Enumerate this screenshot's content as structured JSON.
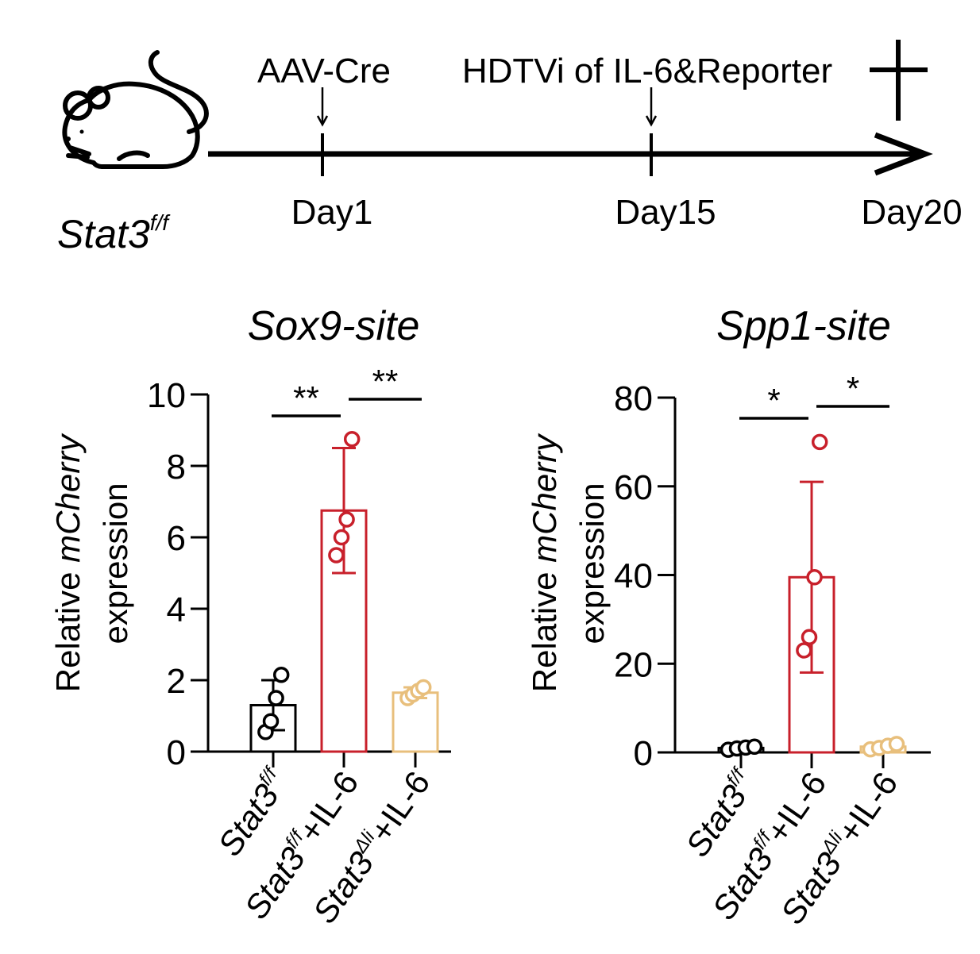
{
  "timeline": {
    "mouse_label": "Stat3",
    "mouse_label_sup": "f/f",
    "events": [
      {
        "label": "AAV-Cre",
        "day": "Day1"
      },
      {
        "label": "HDTVi of IL-6&Reporter",
        "day": "Day15"
      },
      {
        "label": "",
        "day": "Day20"
      }
    ],
    "end_marker": "sacrifice-cross",
    "icon": "mouse-icon"
  },
  "colors": {
    "control": "#000000",
    "il6": "#c8202b",
    "knockout": "#e8bf7c"
  },
  "group_labels": [
    {
      "base": "Stat3",
      "sup": "f/f",
      "suffix": ""
    },
    {
      "base": "Stat3",
      "sup": "f/f",
      "suffix": "+IL-6"
    },
    {
      "base": "Stat3",
      "sup": "Δli",
      "suffix": "+IL-6"
    }
  ],
  "ylabel": {
    "plain": "Relative ",
    "italic": "mCherry",
    "line2": "expression"
  },
  "chart_data": [
    {
      "type": "bar",
      "title": "Sox9-site",
      "ylim": [
        0,
        10
      ],
      "yticks": [
        "0",
        "2",
        "4",
        "6",
        "8",
        "10"
      ],
      "series": [
        {
          "mean": 1.3,
          "sd": 0.7,
          "points": [
            0.55,
            0.85,
            1.5,
            2.15
          ]
        },
        {
          "mean": 6.75,
          "sd": 1.75,
          "points": [
            5.5,
            6.0,
            6.5,
            8.75
          ]
        },
        {
          "mean": 1.65,
          "sd": 0.15,
          "points": [
            1.5,
            1.6,
            1.7,
            1.8
          ]
        }
      ],
      "significance": [
        {
          "from": 0,
          "to": 1,
          "label": "**"
        },
        {
          "from": 1,
          "to": 2,
          "label": "**"
        }
      ]
    },
    {
      "type": "bar",
      "title": "Spp1-site",
      "ylim": [
        0,
        80
      ],
      "yticks": [
        "0",
        "20",
        "40",
        "60",
        "80"
      ],
      "series": [
        {
          "mean": 1.0,
          "sd": 0.3,
          "points": [
            0.6,
            0.9,
            1.1,
            1.3
          ]
        },
        {
          "mean": 39.5,
          "sd": 21.5,
          "points": [
            23.0,
            26.0,
            39.5,
            70.0
          ]
        },
        {
          "mean": 1.3,
          "sd": 0.4,
          "points": [
            0.7,
            1.0,
            1.5,
            1.9
          ]
        }
      ],
      "significance": [
        {
          "from": 0,
          "to": 1,
          "label": "*"
        },
        {
          "from": 1,
          "to": 2,
          "label": "*"
        }
      ]
    }
  ]
}
